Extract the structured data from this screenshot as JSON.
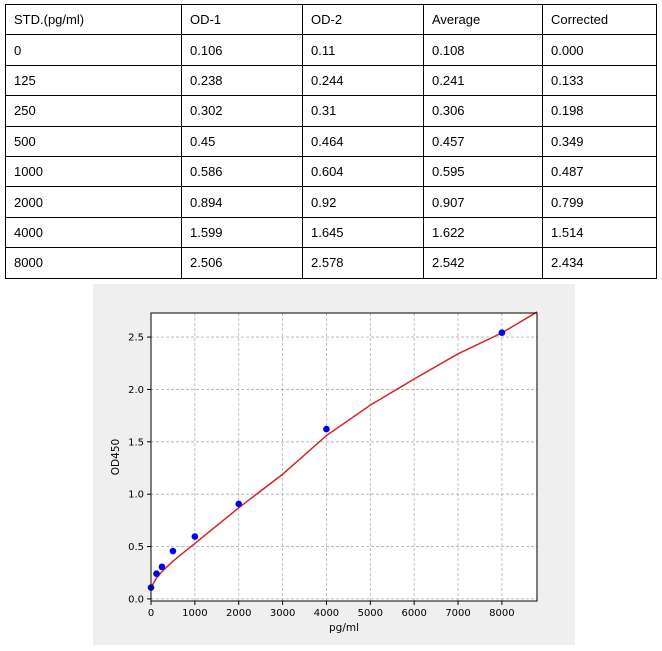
{
  "table": {
    "headers": [
      "STD.(pg/ml)",
      "OD-1",
      "OD-2",
      "Average",
      "Corrected"
    ],
    "rows": [
      [
        "0",
        "0.106",
        "0.11",
        "0.108",
        "0.000"
      ],
      [
        "125",
        "0.238",
        "0.244",
        "0.241",
        "0.133"
      ],
      [
        "250",
        "0.302",
        "0.31",
        "0.306",
        "0.198"
      ],
      [
        "500",
        "0.45",
        "0.464",
        "0.457",
        "0.349"
      ],
      [
        "1000",
        "0.586",
        "0.604",
        "0.595",
        "0.487"
      ],
      [
        "2000",
        "0.894",
        "0.92",
        "0.907",
        "0.799"
      ],
      [
        "4000",
        "1.599",
        "1.645",
        "1.622",
        "1.514"
      ],
      [
        "8000",
        "2.506",
        "2.578",
        "2.542",
        "2.434"
      ]
    ]
  },
  "chart_data": {
    "type": "scatter",
    "xlabel": "pg/ml",
    "ylabel": "OD450",
    "xlim": [
      0,
      8800
    ],
    "ylim": [
      -0.02,
      2.73
    ],
    "xticks": [
      0,
      1000,
      2000,
      3000,
      4000,
      5000,
      6000,
      7000,
      8000
    ],
    "yticks": [
      0.0,
      0.5,
      1.0,
      1.5,
      2.0,
      2.5
    ],
    "xtick_labels": [
      "0",
      "1000",
      "2000",
      "3000",
      "4000",
      "5000",
      "6000",
      "7000",
      "8000"
    ],
    "ytick_labels": [
      "0.0",
      "0.5",
      "1.0",
      "1.5",
      "2.0",
      "2.5"
    ],
    "grid": true,
    "points": {
      "x": [
        0,
        125,
        250,
        500,
        1000,
        2000,
        4000,
        8000
      ],
      "y": [
        0.108,
        0.241,
        0.306,
        0.457,
        0.595,
        0.907,
        1.622,
        2.542
      ],
      "color": "#0000ee"
    },
    "fit_curve": {
      "x": [
        0,
        125,
        250,
        500,
        1000,
        2000,
        3000,
        4000,
        5000,
        6000,
        7000,
        8000,
        8800
      ],
      "y": [
        0.108,
        0.2,
        0.26,
        0.36,
        0.53,
        0.87,
        1.19,
        1.56,
        1.85,
        2.1,
        2.34,
        2.54,
        2.74
      ],
      "color": "#dd2222"
    }
  }
}
